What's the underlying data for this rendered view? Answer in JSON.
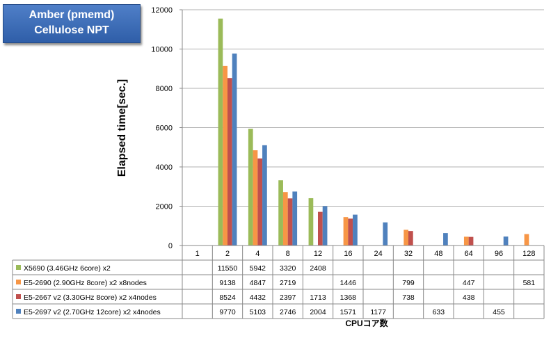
{
  "title": {
    "line1": "Amber (pmemd)",
    "line2": "Cellulose NPT"
  },
  "chart_data": {
    "type": "bar",
    "title": "Amber (pmemd) Cellulose NPT",
    "xlabel": "CPUコア数",
    "ylabel": "Elapsed time[sec.]",
    "ylim": [
      0,
      12000
    ],
    "yticks": [
      0,
      2000,
      4000,
      6000,
      8000,
      10000,
      12000
    ],
    "grid": true,
    "legend": "table-below",
    "categories": [
      "1",
      "2",
      "4",
      "8",
      "12",
      "16",
      "24",
      "32",
      "48",
      "64",
      "96",
      "128"
    ],
    "series": [
      {
        "name": "X5690 (3.46GHz 6core) x2",
        "color": "#9bbb59",
        "values": [
          null,
          11550,
          5942,
          3320,
          2408,
          null,
          null,
          null,
          null,
          null,
          null,
          null
        ]
      },
      {
        "name": "E5-2690 (2.90GHz 8core) x2 x8nodes",
        "color": "#f79646",
        "values": [
          null,
          9138,
          4847,
          2719,
          null,
          1446,
          null,
          799,
          null,
          447,
          null,
          581
        ]
      },
      {
        "name": "E5-2667 v2 (3.30GHz 8core) x2 x4nodes",
        "color": "#c0504d",
        "values": [
          null,
          8524,
          4432,
          2397,
          1713,
          1368,
          null,
          738,
          null,
          438,
          null,
          null
        ]
      },
      {
        "name": "E5-2697 v2 (2.70GHz 12core) x2 x4nodes",
        "color": "#4f81bd",
        "values": [
          null,
          9770,
          5103,
          2746,
          2004,
          1571,
          1177,
          null,
          633,
          null,
          455,
          null
        ]
      }
    ]
  }
}
